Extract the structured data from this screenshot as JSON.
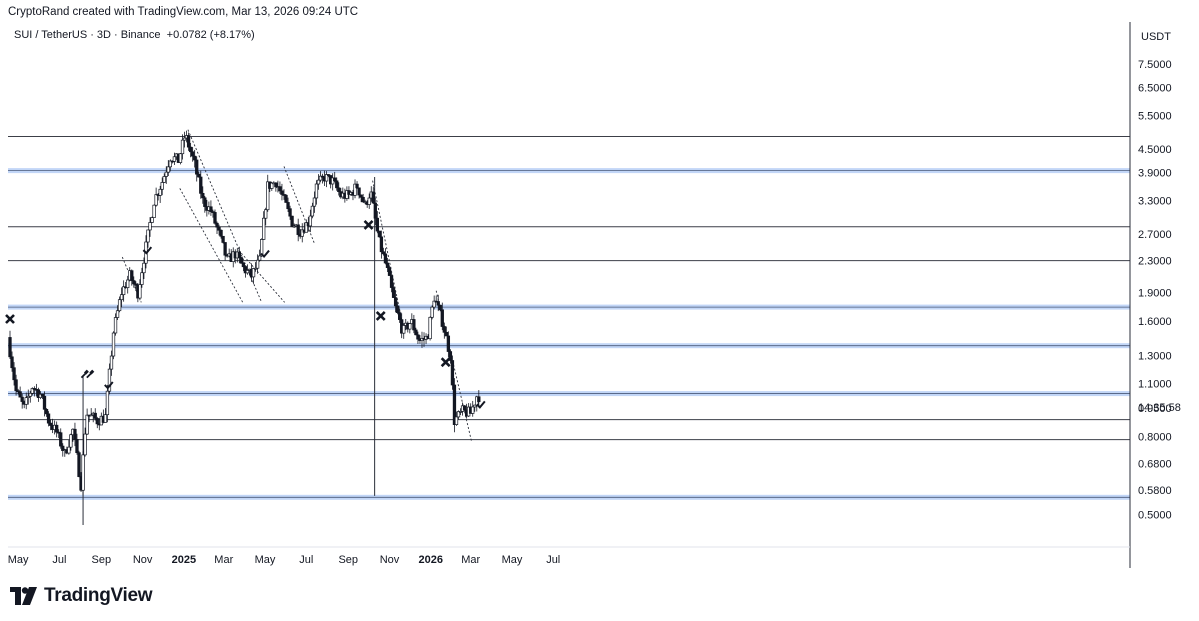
{
  "header": {
    "credit": "CryptoRand created with TradingView.com, Mar 13, 2026 09:24 UTC",
    "symbol_line": "SUI / TetherUS · 3D · Binance",
    "change": "+0.0782 (+8.17%)"
  },
  "price_axis": {
    "currency": "USDT",
    "countdown": "14:35:58"
  },
  "brand": {
    "name": "TradingView"
  },
  "colors": {
    "line": "#131722",
    "zone": "#90b4f0",
    "bg": "#ffffff"
  },
  "chart_data": {
    "type": "candlestick",
    "title": "",
    "symbol": "SUI / TetherUS",
    "interval": "3D",
    "exchange": "Binance",
    "y_scale": "log",
    "ylim": [
      0.47,
      8.3
    ],
    "y_ticks": [
      "7.5000",
      "6.5000",
      "5.5000",
      "4.5000",
      "3.9000",
      "3.3000",
      "2.7000",
      "2.3000",
      "1.9000",
      "1.6000",
      "1.3000",
      "1.1000",
      "0.9500",
      "0.8000",
      "0.6800",
      "0.5800",
      "0.5000"
    ],
    "x_ticks": [
      {
        "label": "May",
        "date": "2024-05-01"
      },
      {
        "label": "Jul",
        "date": "2024-07-01"
      },
      {
        "label": "Sep",
        "date": "2024-09-01"
      },
      {
        "label": "Nov",
        "date": "2024-11-01"
      },
      {
        "label": "2025",
        "date": "2025-01-01",
        "bold": true
      },
      {
        "label": "Mar",
        "date": "2025-03-01"
      },
      {
        "label": "May",
        "date": "2025-05-01"
      },
      {
        "label": "Jul",
        "date": "2025-07-01"
      },
      {
        "label": "Sep",
        "date": "2025-09-01"
      },
      {
        "label": "Nov",
        "date": "2025-11-01"
      },
      {
        "label": "2026",
        "date": "2026-01-01",
        "bold": true
      },
      {
        "label": "Mar",
        "date": "2026-03-01"
      },
      {
        "label": "May",
        "date": "2026-05-01"
      },
      {
        "label": "Jul",
        "date": "2026-07-01"
      }
    ],
    "horizontal_levels": [
      {
        "price": 4.85,
        "style": "line"
      },
      {
        "price": 3.95,
        "style": "zone"
      },
      {
        "price": 2.82,
        "style": "line"
      },
      {
        "price": 2.3,
        "style": "line"
      },
      {
        "price": 1.74,
        "style": "zone"
      },
      {
        "price": 1.38,
        "style": "zone"
      },
      {
        "price": 1.035,
        "style": "zone"
      },
      {
        "price": 0.885,
        "style": "line"
      },
      {
        "price": 0.785,
        "style": "line"
      },
      {
        "price": 0.555,
        "style": "zone"
      }
    ],
    "trendlines": [
      {
        "from": {
          "date": "2024-10-02",
          "price": 2.35
        },
        "to": {
          "date": "2024-10-30",
          "price": 1.79
        }
      },
      {
        "from": {
          "date": "2025-01-07",
          "price": 5.05
        },
        "to": {
          "date": "2025-04-26",
          "price": 1.79
        }
      },
      {
        "from": {
          "date": "2024-12-26",
          "price": 3.55
        },
        "to": {
          "date": "2025-03-29",
          "price": 1.79
        }
      },
      {
        "from": {
          "date": "2025-03-23",
          "price": 2.45
        },
        "to": {
          "date": "2025-05-30",
          "price": 1.79
        }
      },
      {
        "from": {
          "date": "2025-05-29",
          "price": 4.05
        },
        "to": {
          "date": "2025-07-13",
          "price": 2.55
        }
      },
      {
        "from": {
          "date": "2025-10-07",
          "price": 3.72
        },
        "to": {
          "date": "2025-11-21",
          "price": 1.55
        }
      },
      {
        "from": {
          "date": "2026-01-09",
          "price": 1.92
        },
        "to": {
          "date": "2026-03-02",
          "price": 0.78
        }
      }
    ],
    "vertical_lines": [
      {
        "date": "2024-08-05",
        "from_price": 0.47,
        "to_price": 1.15
      },
      {
        "date": "2025-10-10",
        "from_price": 0.56,
        "to_price": 3.8
      }
    ],
    "markers": [
      {
        "type": "cross",
        "date": "2024-04-19",
        "price": 1.62
      },
      {
        "type": "pin",
        "date": "2024-08-07",
        "price": 1.16
      },
      {
        "type": "pin",
        "date": "2024-08-15",
        "price": 1.16
      },
      {
        "type": "check",
        "date": "2024-09-12",
        "price": 1.09
      },
      {
        "type": "check",
        "date": "2024-11-08",
        "price": 2.45
      },
      {
        "type": "check",
        "date": "2025-05-01",
        "price": 2.4
      },
      {
        "type": "cross",
        "date": "2025-10-01",
        "price": 2.85
      },
      {
        "type": "cross",
        "date": "2025-10-19",
        "price": 1.65
      },
      {
        "type": "cross",
        "date": "2026-01-23",
        "price": 1.25
      },
      {
        "type": "check",
        "date": "2026-03-16",
        "price": 0.97
      }
    ],
    "price_path": [
      [
        "2024-04-19",
        1.45
      ],
      [
        "2024-05-01",
        1.05
      ],
      [
        "2024-05-13",
        0.95
      ],
      [
        "2024-05-25",
        1.08
      ],
      [
        "2024-06-06",
        1.03
      ],
      [
        "2024-06-18",
        0.88
      ],
      [
        "2024-06-30",
        0.82
      ],
      [
        "2024-07-12",
        0.72
      ],
      [
        "2024-07-24",
        0.83
      ],
      [
        "2024-08-05",
        0.6
      ],
      [
        "2024-08-13",
        0.92
      ],
      [
        "2024-08-29",
        0.88
      ],
      [
        "2024-09-10",
        0.9
      ],
      [
        "2024-09-22",
        1.5
      ],
      [
        "2024-10-04",
        1.9
      ],
      [
        "2024-10-16",
        2.1
      ],
      [
        "2024-10-28",
        1.9
      ],
      [
        "2024-11-09",
        2.5
      ],
      [
        "2024-11-21",
        3.3
      ],
      [
        "2024-12-03",
        3.7
      ],
      [
        "2024-12-15",
        4.3
      ],
      [
        "2024-12-27",
        4.2
      ],
      [
        "2025-01-06",
        4.9
      ],
      [
        "2025-01-20",
        4.1
      ],
      [
        "2025-02-01",
        3.3
      ],
      [
        "2025-02-13",
        3.1
      ],
      [
        "2025-02-25",
        2.7
      ],
      [
        "2025-03-09",
        2.3
      ],
      [
        "2025-03-21",
        2.4
      ],
      [
        "2025-04-02",
        2.2
      ],
      [
        "2025-04-14",
        2.1
      ],
      [
        "2025-04-26",
        2.3
      ],
      [
        "2025-05-08",
        3.6
      ],
      [
        "2025-05-20",
        3.7
      ],
      [
        "2025-06-01",
        3.3
      ],
      [
        "2025-06-13",
        2.9
      ],
      [
        "2025-06-25",
        2.75
      ],
      [
        "2025-07-07",
        2.9
      ],
      [
        "2025-07-19",
        3.6
      ],
      [
        "2025-07-31",
        3.8
      ],
      [
        "2025-08-12",
        3.7
      ],
      [
        "2025-08-24",
        3.4
      ],
      [
        "2025-09-05",
        3.4
      ],
      [
        "2025-09-17",
        3.6
      ],
      [
        "2025-09-29",
        3.2
      ],
      [
        "2025-10-07",
        3.5
      ],
      [
        "2025-10-19",
        2.6
      ],
      [
        "2025-10-31",
        2.2
      ],
      [
        "2025-11-12",
        1.75
      ],
      [
        "2025-11-24",
        1.5
      ],
      [
        "2025-12-06",
        1.6
      ],
      [
        "2025-12-18",
        1.42
      ],
      [
        "2025-12-30",
        1.45
      ],
      [
        "2026-01-09",
        1.85
      ],
      [
        "2026-01-21",
        1.6
      ],
      [
        "2026-02-02",
        1.3
      ],
      [
        "2026-02-08",
        0.88
      ],
      [
        "2026-02-20",
        0.93
      ],
      [
        "2026-03-04",
        0.92
      ],
      [
        "2026-03-13",
        1.02
      ]
    ]
  }
}
